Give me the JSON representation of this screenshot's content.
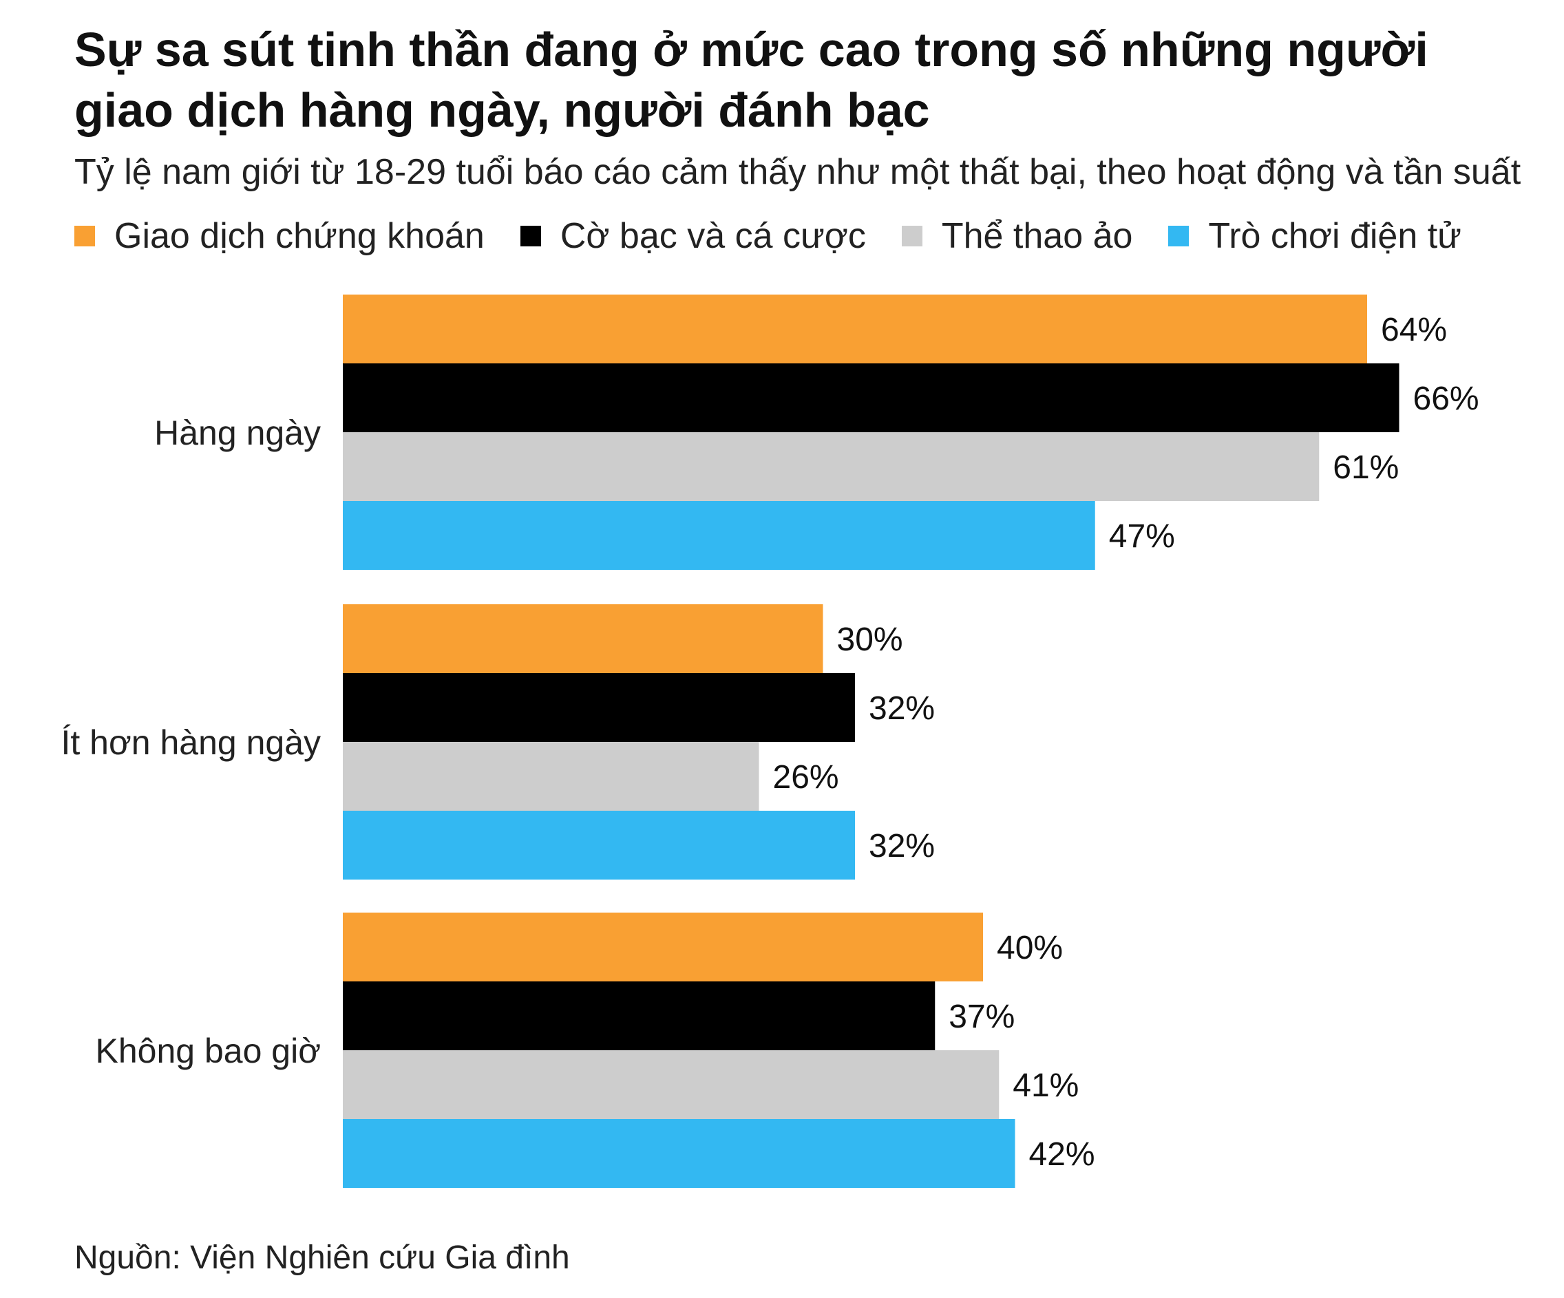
{
  "chart_data": {
    "type": "bar",
    "orientation": "horizontal",
    "title": "Sự sa sút tinh thần đang ở mức cao trong số những người giao dịch hàng ngày, người đánh bạc",
    "subtitle": "Tỷ lệ nam giới từ 18-29 tuổi báo cáo cảm thấy như một thất bại, theo hoạt động và tần suất",
    "categories": [
      "Hàng ngày",
      "Ít hơn hàng ngày",
      "Không bao giờ"
    ],
    "series": [
      {
        "name": "Giao dịch chứng khoán",
        "color": "#F9A033",
        "values": [
          64,
          30,
          40
        ],
        "labels": [
          "64%",
          "30%",
          "40%"
        ]
      },
      {
        "name": "Cờ bạc và cá cược",
        "color": "#000000",
        "values": [
          66,
          32,
          37
        ],
        "labels": [
          "66%",
          "32%",
          "37%"
        ]
      },
      {
        "name": "Thể thao ảo",
        "color": "#CDCDCD",
        "values": [
          61,
          26,
          41
        ],
        "labels": [
          "61%",
          "26%",
          "41%"
        ]
      },
      {
        "name": "Trò chơi điện tử",
        "color": "#33B8F2",
        "values": [
          47,
          32,
          42
        ],
        "labels": [
          "47%",
          "32%",
          "42%"
        ]
      }
    ],
    "xlim": [
      0,
      66
    ],
    "grid": false,
    "legend": "top-left"
  },
  "source": "Nguồn: Viện Nghiên cứu Gia đình"
}
